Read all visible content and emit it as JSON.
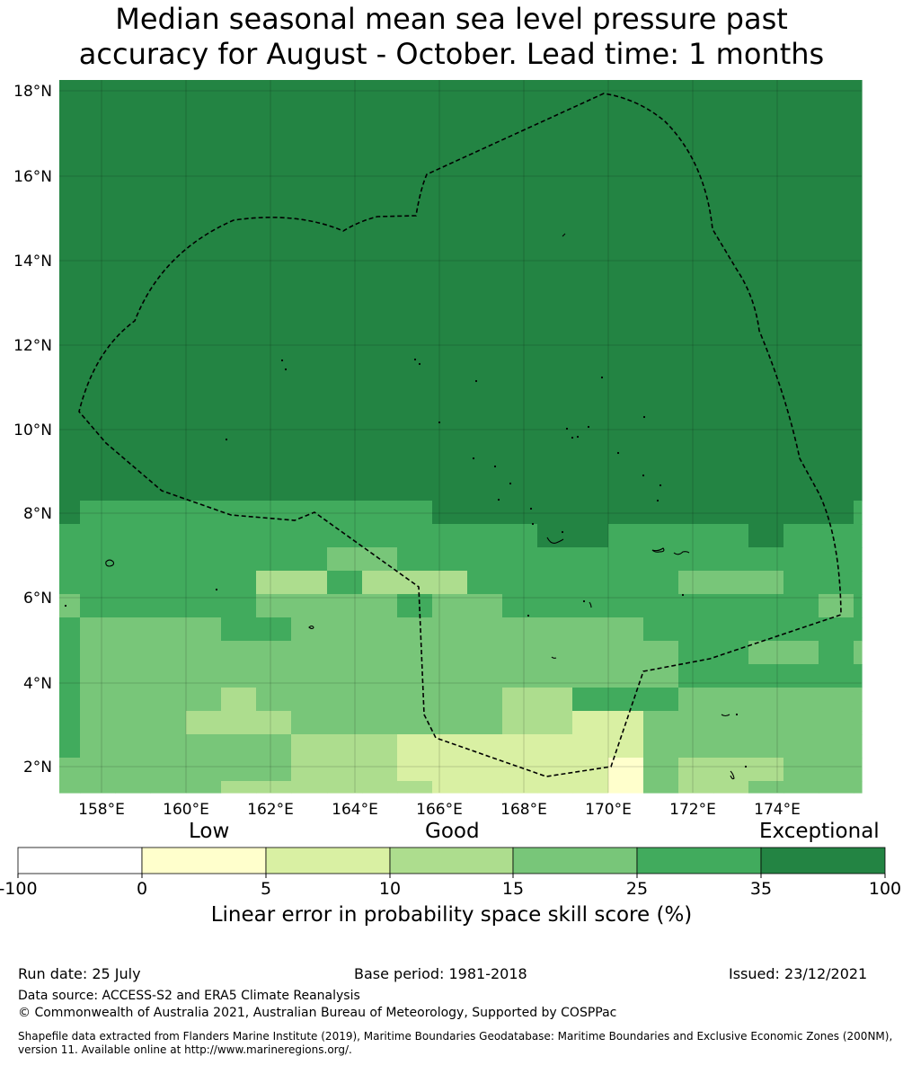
{
  "title": {
    "line1": "Median seasonal mean sea level pressure past",
    "line2": "accuracy for August - October. Lead time: 1 months"
  },
  "map": {
    "lat_labels": [
      "18°N",
      "16°N",
      "14°N",
      "12°N",
      "10°N",
      "8°N",
      "6°N",
      "4°N",
      "2°N"
    ],
    "lon_labels": [
      "158°E",
      "160°E",
      "162°E",
      "164°E",
      "166°E",
      "168°E",
      "170°E",
      "172°E",
      "174°E"
    ],
    "colors": {
      "exceptional": "#238443",
      "very_good": "#41ab5d",
      "good_high": "#78c679",
      "good": "#addd8e",
      "low_high": "#d9f0a3",
      "low": "#ffffcc",
      "none": "#ffffff",
      "boundary": "#000000"
    }
  },
  "colorbar": {
    "categories": [
      "Low",
      "Good",
      "Exceptional"
    ],
    "ticks": [
      "-100",
      "0",
      "5",
      "10",
      "15",
      "25",
      "35",
      "100"
    ],
    "label": "Linear error in probability space skill score (%)"
  },
  "footer": {
    "run_date": "Run date: 25 July",
    "base_period": "Base period: 1981-2018",
    "issued": "Issued: 23/12/2021",
    "data_source": "Data source: ACCESS-S2 and ERA5 Climate Reanalysis",
    "copyright": "© Commonwealth of Australia 2021, Australian Bureau of Meteorology, Supported by COSPPac",
    "shapefile": "Shapefile data extracted from Flanders Marine Institute (2019), Maritime Boundaries Geodatabase: Maritime Boundaries and Exclusive Economic Zones (200NM), version 11. Available online at http://www.marineregions.org/."
  }
}
